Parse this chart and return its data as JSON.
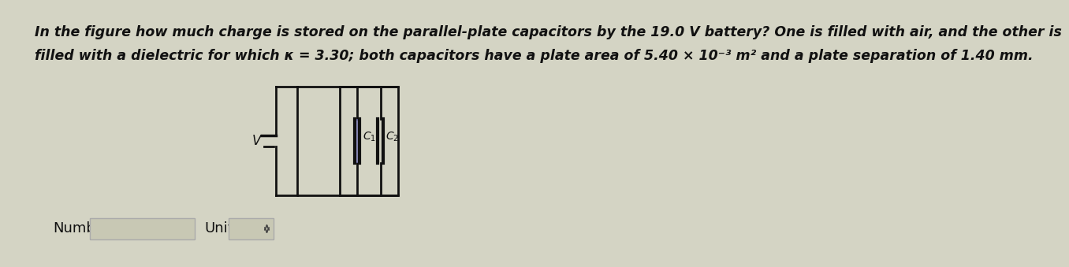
{
  "bg_color": "#d4d4c4",
  "text_line1": "In the figure how much charge is stored on the parallel-plate capacitors by the 19.0 V battery? One is filled with air, and the other is",
  "text_line2": "filled with a dielectric for which κ = 3.30; both capacitors have a plate area of 5.40 × 10⁻³ m² and a plate separation of 1.40 mm.",
  "text_fontsize": 12.5,
  "label_color": "#111111",
  "circuit_line_color": "#111111",
  "cap_fill_color": "#7777bb",
  "cap_fill_color2": "#8888bb",
  "number_label": "Number",
  "units_label": "Units",
  "input_box_facecolor": "#c8c8b4",
  "input_box_edgecolor": "#aaaaaa"
}
